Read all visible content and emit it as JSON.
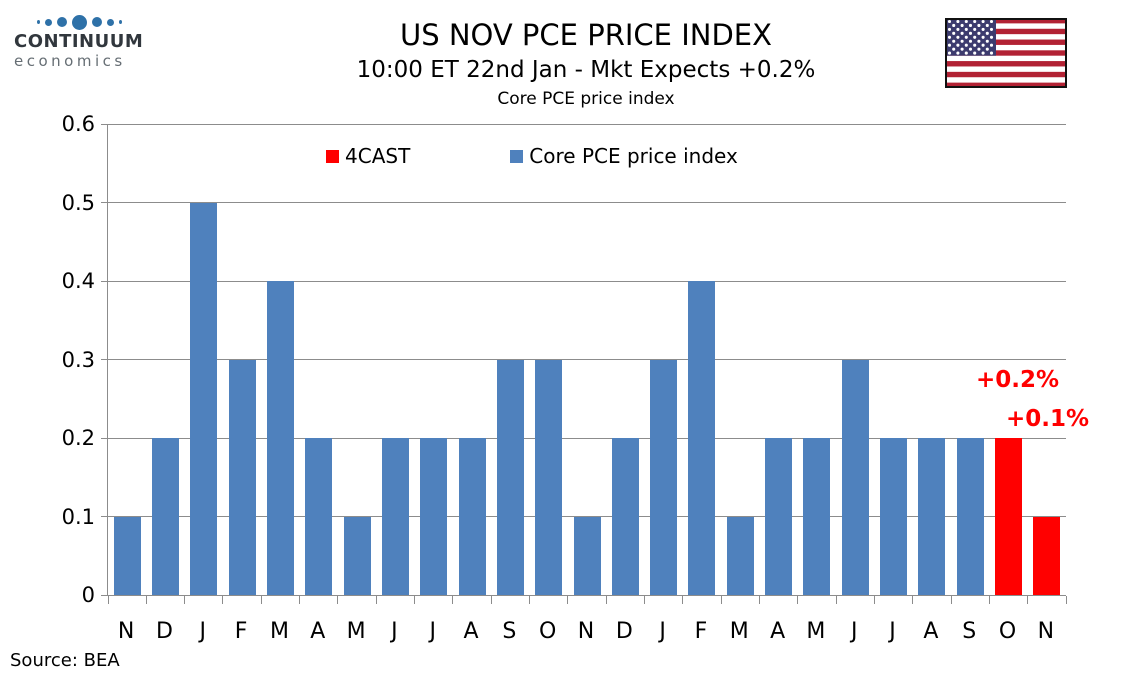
{
  "logo": {
    "line1": "CONTINUUM",
    "line2": "economics",
    "dot_color": "#2e71a8"
  },
  "header": {
    "title": "US NOV PCE PRICE INDEX",
    "subtitle": "10:00 ET 22nd Jan - Mkt Expects +0.2%",
    "chart_label": "Core PCE price index"
  },
  "flag": {
    "name": "us-flag",
    "stripe_red": "#b22234",
    "canton_blue": "#3c3b6e",
    "star_color": "#ffffff",
    "border_color": "#111111"
  },
  "source": "Source: BEA",
  "chart_data": {
    "type": "bar",
    "title": "Core PCE price index",
    "categories": [
      "N",
      "D",
      "J",
      "F",
      "M",
      "A",
      "M",
      "J",
      "J",
      "A",
      "S",
      "O",
      "N",
      "D",
      "J",
      "F",
      "M",
      "A",
      "M",
      "J",
      "J",
      "A",
      "S",
      "O",
      "N"
    ],
    "values": [
      0.1,
      0.2,
      0.5,
      0.3,
      0.4,
      0.2,
      0.1,
      0.2,
      0.2,
      0.2,
      0.3,
      0.3,
      0.1,
      0.2,
      0.3,
      0.4,
      0.1,
      0.2,
      0.2,
      0.3,
      0.2,
      0.2,
      0.2,
      0.2,
      0.1
    ],
    "forecast_indices": [
      23,
      24
    ],
    "bar_color_actual": "#4f81bd",
    "bar_color_forecast": "#ff0000",
    "xlabel": "",
    "ylabel": "",
    "ylim": [
      0,
      0.6
    ],
    "ytick_step": 0.1,
    "yticks": [
      "0",
      "0.1",
      "0.2",
      "0.3",
      "0.4",
      "0.5",
      "0.6"
    ],
    "grid": true,
    "gridline_color": "#8c8c8c",
    "legend_position": "top-center",
    "legend": [
      {
        "label": "4CAST",
        "color": "#ff0000"
      },
      {
        "label": "Core PCE price index",
        "color": "#4f81bd"
      }
    ],
    "annotations": [
      {
        "text": "+0.2%",
        "color": "#ff0000",
        "refers_to": "O forecast bar"
      },
      {
        "text": "+0.1%",
        "color": "#ff0000",
        "refers_to": "N forecast bar"
      }
    ]
  }
}
